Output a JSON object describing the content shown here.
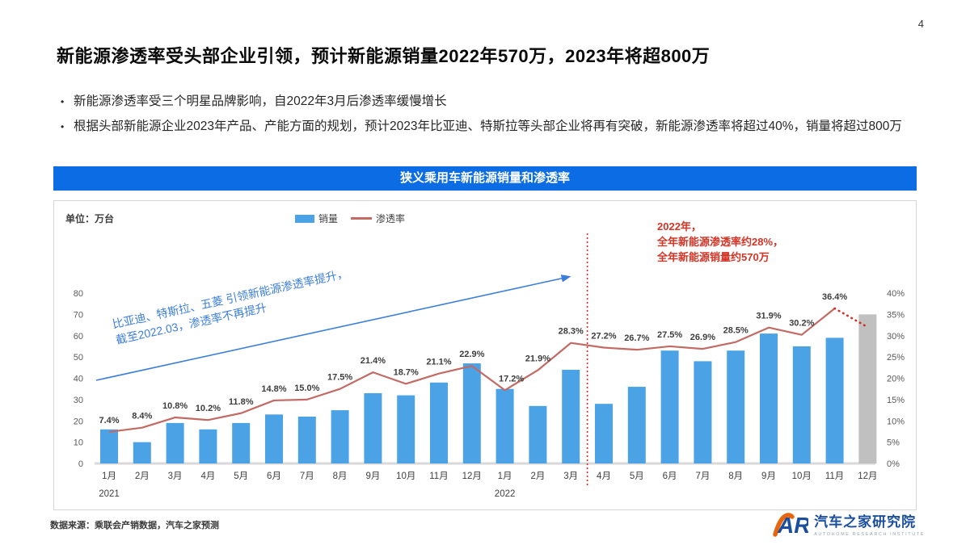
{
  "page": {
    "number": "4"
  },
  "header": {
    "title": "新能源渗透率受头部企业引领，预计新能源销量2022年570万，2023年将超800万"
  },
  "bullets": [
    "新能源渗透率受三个明星品牌影响，自2022年3月后渗透率缓慢增长",
    "根据头部新能源企业2023年产品、产能方面的规划，预计2023年比亚迪、特斯拉等头部企业将再有突破，新能源渗透率将超过40%，销量将超过800万"
  ],
  "banner": {
    "title": "狭义乘用车新能源销量和渗透率",
    "bg": "#0b6ce4"
  },
  "chart": {
    "unit_label": "单位：万台",
    "legend": [
      {
        "label": "销量",
        "type": "bar"
      },
      {
        "label": "渗透率",
        "type": "line"
      }
    ],
    "annotation_red": [
      "2022年，",
      "全年新能源渗透率约28%，",
      "全年新能源销量约570万"
    ],
    "annotation_blue": [
      "比亚迪、特斯拉、五菱 引领新能源渗透率提升，",
      "截至2022.03，渗透率不再提升"
    ],
    "colors": {
      "bar": "#4ba3e6",
      "bar_forecast": "#c0c0c0",
      "line": "#c26a63",
      "forecast_red": "#d42a1f",
      "divider_red": "#d42a1f",
      "annotation_red": "#d43425",
      "annotation_blue": "#3c7edd",
      "axis_text": "#595959",
      "baseline": "#d9d9d9"
    }
  },
  "chart_data": {
    "type": "bar+line",
    "title": "狭义乘用车新能源销量和渗透率",
    "unit": "万台",
    "grid": false,
    "legend_position": "top",
    "categories": [
      "1月",
      "2月",
      "3月",
      "4月",
      "5月",
      "6月",
      "7月",
      "8月",
      "9月",
      "10月",
      "11月",
      "12月",
      "1月",
      "2月",
      "3月",
      "4月",
      "5月",
      "6月",
      "7月",
      "8月",
      "9月",
      "10月",
      "11月",
      "12月"
    ],
    "year_labels": [
      {
        "index": 0,
        "label": "2021"
      },
      {
        "index": 12,
        "label": "2022"
      }
    ],
    "series": [
      {
        "name": "销量",
        "type": "bar",
        "values": [
          16,
          10,
          19,
          16,
          19,
          23,
          22,
          25,
          33,
          32,
          38,
          47,
          35,
          27,
          44,
          28,
          36,
          53,
          48,
          53,
          61,
          55,
          59,
          70
        ],
        "last_is_forecast": true
      },
      {
        "name": "渗透率",
        "type": "line",
        "values": [
          7.4,
          8.4,
          10.8,
          10.2,
          11.8,
          14.8,
          15.0,
          17.5,
          21.4,
          18.7,
          21.1,
          22.9,
          17.2,
          21.9,
          28.3,
          27.2,
          26.7,
          27.5,
          26.9,
          28.5,
          31.9,
          30.2,
          36.4,
          null
        ],
        "forecast_end_value": 32
      }
    ],
    "left_axis": {
      "min": 0,
      "max": 80,
      "step": 10
    },
    "right_axis": {
      "min": 0,
      "max": 40,
      "step": 5,
      "suffix": "%"
    },
    "divider_after_index": 14
  },
  "footer": {
    "source": "数据来源：乘联会产销数据，汽车之家预测",
    "logo": {
      "mark": "AR",
      "name": "汽车之家研究院",
      "subtitle": "AUTOHOME RESEARCH INSTITUTE"
    }
  }
}
